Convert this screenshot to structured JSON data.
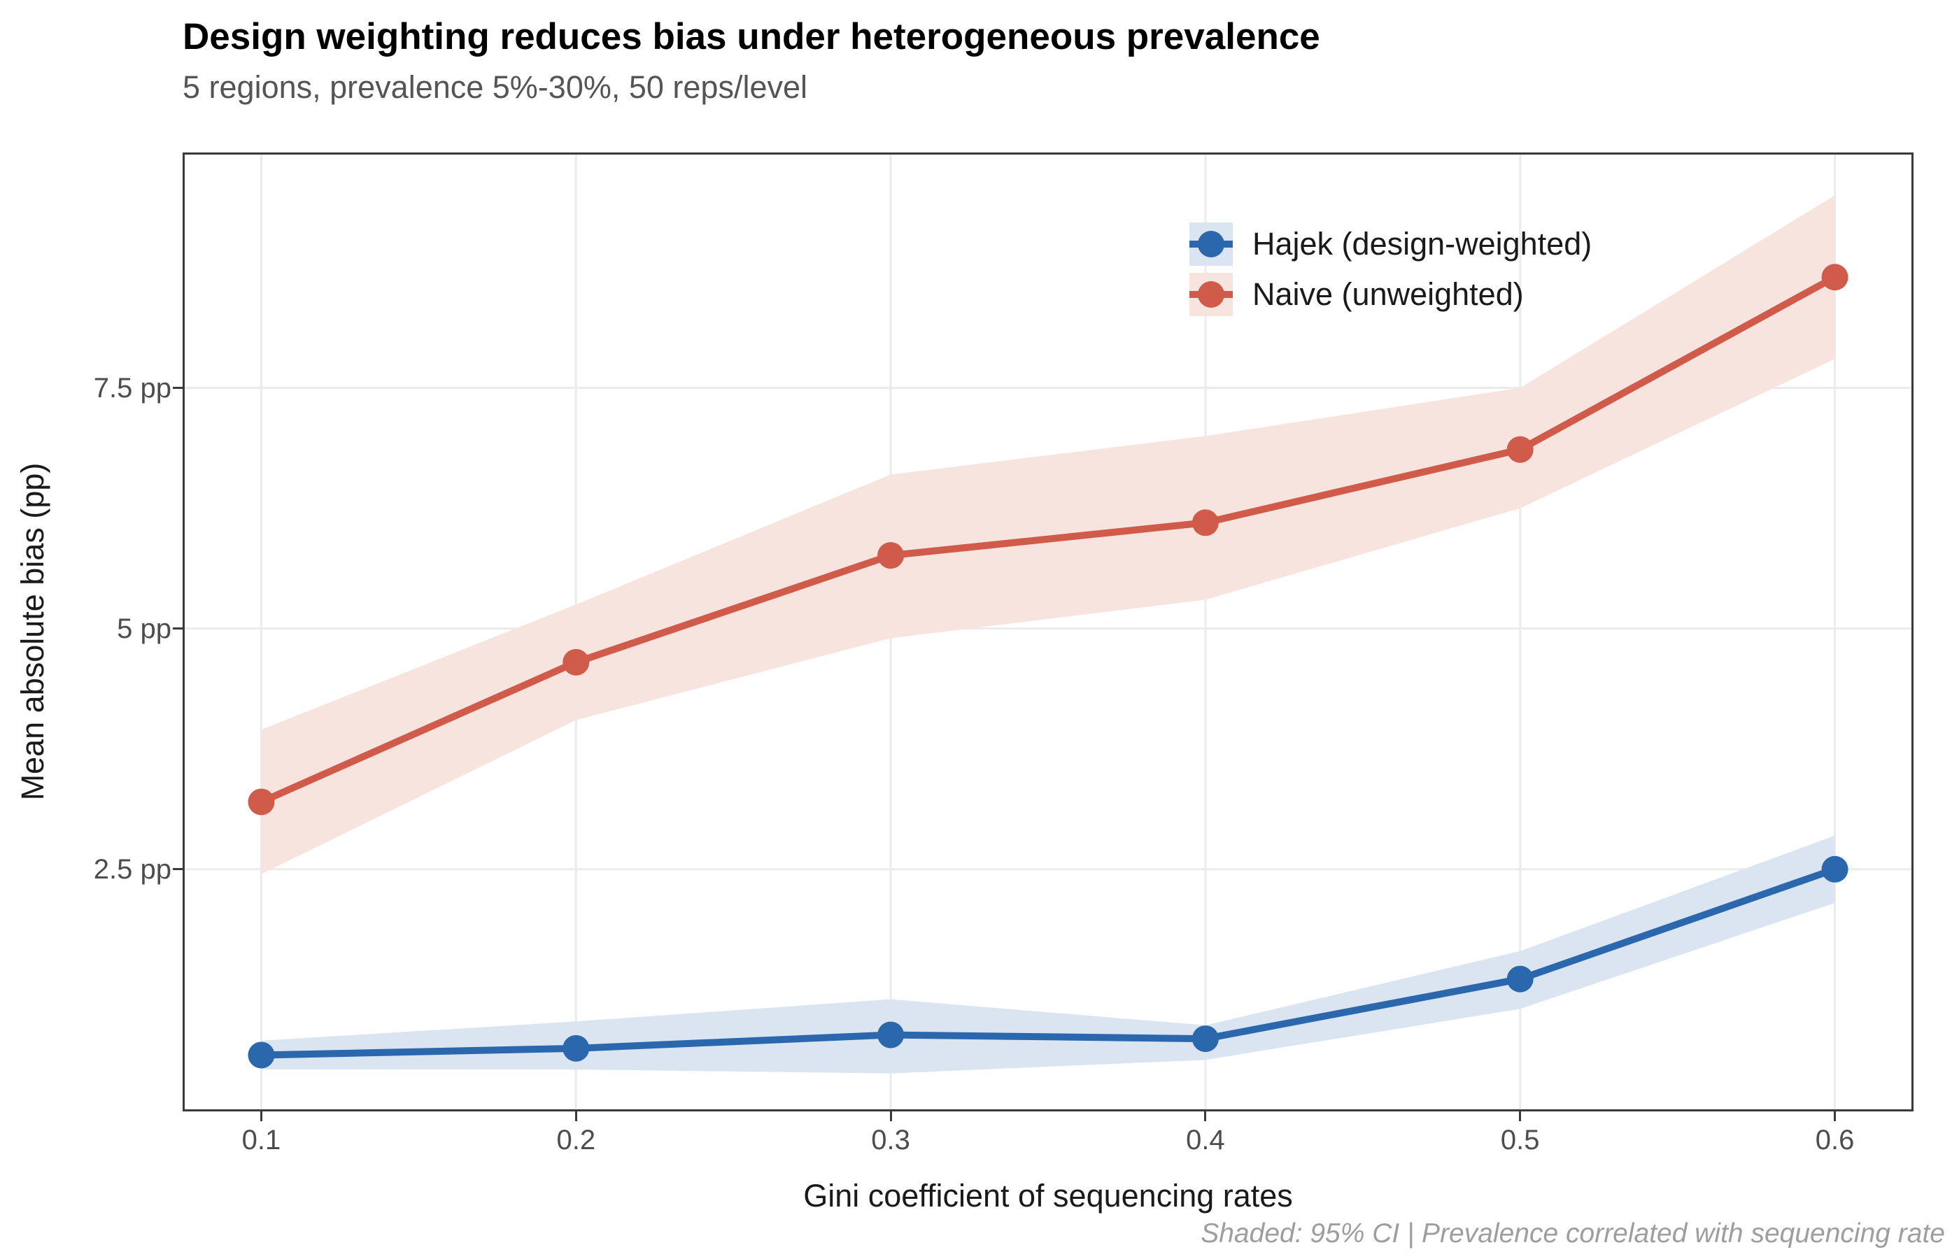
{
  "chart_data": {
    "type": "line",
    "title": "Design weighting reduces bias under heterogeneous prevalence",
    "subtitle": "5 regions, prevalence 5%-30%, 50 reps/level",
    "xlabel": "Gini coefficient of sequencing rates",
    "ylabel": "Mean absolute bias (pp)",
    "caption": "Shaded: 95% CI | Prevalence correlated with sequencing rate",
    "x": [
      0.1,
      0.2,
      0.3,
      0.4,
      0.5,
      0.6
    ],
    "x_tick_labels": [
      "0.1",
      "0.2",
      "0.3",
      "0.4",
      "0.5",
      "0.6"
    ],
    "y_ticks": [
      {
        "value": 2.5,
        "label": "2.5 pp"
      },
      {
        "value": 5,
        "label": "5 pp"
      },
      {
        "value": 7.5,
        "label": "7.5 pp"
      }
    ],
    "xlim": [
      0.075,
      0.625
    ],
    "ylim": [
      -0.015,
      9.945
    ],
    "grid": "major-only",
    "legend_position": "inside-top-right",
    "ribbon_note": "shaded bands are 95% confidence intervals",
    "series": [
      {
        "name": "Hajek (design-weighted)",
        "color": "#2b67ac",
        "ribbon_color": "#dbe5f2",
        "values": [
          0.57,
          0.64,
          0.78,
          0.74,
          1.36,
          2.5
        ],
        "ci_low": [
          0.42,
          0.42,
          0.38,
          0.52,
          1.05,
          2.15
        ],
        "ci_high": [
          0.72,
          0.92,
          1.15,
          0.88,
          1.65,
          2.85
        ]
      },
      {
        "name": "Naive (unweighted)",
        "color": "#d15b4a",
        "ribbon_color": "#f8e4df",
        "values": [
          3.2,
          4.65,
          5.76,
          6.1,
          6.86,
          8.65
        ],
        "ci_low": [
          2.45,
          4.05,
          4.9,
          5.3,
          6.25,
          7.8
        ],
        "ci_high": [
          3.95,
          5.25,
          6.6,
          7.0,
          7.5,
          9.5
        ]
      }
    ],
    "theme": {
      "gridline_color": "#ebebeb",
      "panel_border_color": "#3a3a3a",
      "tick_color": "#3a3a3a",
      "point_radius": 19,
      "line_width": 10
    }
  }
}
